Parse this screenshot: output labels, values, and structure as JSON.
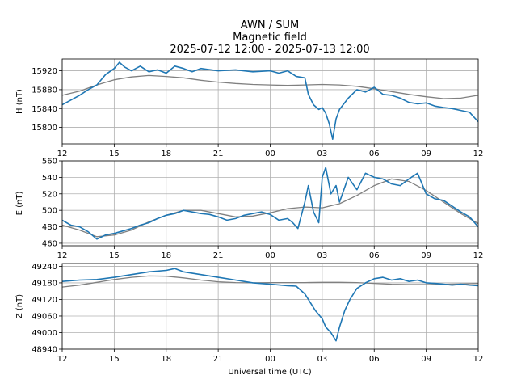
{
  "chart_data": {
    "title": [
      "AWN / SUM",
      "Magnetic field",
      "2025-07-12 12:00 - 2025-07-13 12:00"
    ],
    "xlabel": "Universal time (UTC)",
    "type": "line",
    "x_ticks": [
      "12",
      "15",
      "18",
      "21",
      "00",
      "03",
      "06",
      "09",
      "12"
    ],
    "x_range_hours": [
      12,
      36
    ],
    "grid": true,
    "colors": {
      "measured": "#1f77b4",
      "baseline": "#808080"
    },
    "panels": [
      {
        "ylabel": "H (nT)",
        "ylim": [
          15765,
          15945
        ],
        "yticks": [
          15800,
          15840,
          15880,
          15920
        ],
        "series": [
          {
            "role": "measured",
            "x": [
              12,
              12.5,
              13,
              13.5,
              14,
              14.5,
              15,
              15.3,
              15.6,
              16,
              16.5,
              17,
              17.5,
              18,
              18.5,
              19,
              19.5,
              20,
              21,
              22,
              23,
              24,
              24.5,
              25,
              25.5,
              26,
              26.2,
              26.5,
              26.8,
              27,
              27.2,
              27.4,
              27.6,
              27.8,
              28,
              28.5,
              29,
              29.5,
              30,
              30.5,
              31,
              31.5,
              32,
              32.5,
              33,
              33.5,
              34,
              34.5,
              35,
              35.5,
              36
            ],
            "y": [
              15848,
              15858,
              15868,
              15880,
              15890,
              15912,
              15925,
              15938,
              15928,
              15920,
              15930,
              15918,
              15922,
              15915,
              15930,
              15925,
              15918,
              15925,
              15920,
              15922,
              15918,
              15920,
              15915,
              15920,
              15908,
              15905,
              15870,
              15848,
              15838,
              15842,
              15830,
              15808,
              15775,
              15818,
              15838,
              15862,
              15880,
              15875,
              15885,
              15870,
              15868,
              15862,
              15853,
              15850,
              15852,
              15845,
              15842,
              15840,
              15836,
              15832,
              15812
            ]
          },
          {
            "role": "baseline",
            "x": [
              12,
              13,
              14,
              15,
              16,
              17,
              18,
              19,
              20,
              21,
              22,
              23,
              24,
              25,
              26,
              27,
              28,
              29,
              30,
              31,
              32,
              33,
              34,
              35,
              36
            ],
            "y": [
              15868,
              15877,
              15890,
              15901,
              15907,
              15910,
              15908,
              15905,
              15900,
              15896,
              15893,
              15891,
              15890,
              15889,
              15890,
              15891,
              15890,
              15887,
              15882,
              15876,
              15870,
              15865,
              15861,
              15862,
              15868
            ]
          }
        ]
      },
      {
        "ylabel": "E (nT)",
        "ylim": [
          457,
          560
        ],
        "yticks": [
          460,
          480,
          500,
          520,
          540,
          560
        ],
        "series": [
          {
            "role": "measured",
            "x": [
              12,
              12.5,
              13,
              13.5,
              14,
              14.5,
              15,
              15.5,
              16,
              16.5,
              17,
              17.5,
              18,
              18.5,
              19,
              19.5,
              20,
              20.5,
              21,
              21.5,
              22,
              22.5,
              23,
              23.5,
              24,
              24.5,
              25,
              25.3,
              25.6,
              26,
              26.2,
              26.5,
              26.8,
              27,
              27.2,
              27.5,
              27.8,
              28,
              28.5,
              29,
              29.5,
              30,
              30.5,
              31,
              31.5,
              32,
              32.5,
              33,
              33.5,
              34,
              34.5,
              35,
              35.5,
              36
            ],
            "y": [
              488,
              482,
              480,
              474,
              465,
              470,
              472,
              475,
              478,
              482,
              485,
              490,
              494,
              496,
              500,
              498,
              496,
              495,
              492,
              488,
              490,
              494,
              496,
              498,
              495,
              488,
              490,
              485,
              478,
              510,
              530,
              498,
              485,
              540,
              552,
              520,
              530,
              510,
              540,
              525,
              545,
              540,
              538,
              532,
              530,
              538,
              545,
              520,
              514,
              512,
              505,
              498,
              492,
              480
            ]
          },
          {
            "role": "baseline",
            "x": [
              12,
              13,
              14,
              15,
              16,
              17,
              18,
              19,
              20,
              21,
              22,
              23,
              24,
              25,
              26,
              27,
              28,
              29,
              30,
              31,
              32,
              33,
              34,
              35,
              36
            ],
            "y": [
              482,
              476,
              468,
              470,
              476,
              486,
              494,
              500,
              500,
              496,
              492,
              493,
              497,
              502,
              504,
              503,
              508,
              518,
              530,
              538,
              535,
              524,
              510,
              496,
              484
            ]
          }
        ]
      },
      {
        "ylabel": "Z (nT)",
        "ylim": [
          48940,
          49250
        ],
        "yticks": [
          48940,
          49000,
          49060,
          49120,
          49180,
          49240
        ],
        "series": [
          {
            "role": "measured",
            "x": [
              12,
              13,
              14,
              15,
              16,
              17,
              18,
              18.5,
              19,
              20,
              21,
              22,
              23,
              24,
              25,
              25.5,
              26,
              26.3,
              26.6,
              27,
              27.2,
              27.5,
              27.8,
              28,
              28.3,
              28.6,
              29,
              29.5,
              30,
              30.5,
              31,
              31.5,
              32,
              32.5,
              33,
              33.5,
              34,
              34.5,
              35,
              35.5,
              36
            ],
            "y": [
              49185,
              49190,
              49192,
              49200,
              49210,
              49220,
              49225,
              49232,
              49220,
              49210,
              49200,
              49190,
              49180,
              49175,
              49170,
              49168,
              49140,
              49110,
              49080,
              49050,
              49020,
              49000,
              48970,
              49020,
              49080,
              49120,
              49160,
              49180,
              49195,
              49200,
              49190,
              49195,
              49185,
              49190,
              49180,
              49178,
              49175,
              49172,
              49175,
              49172,
              49170
            ]
          },
          {
            "role": "baseline",
            "x": [
              12,
              13,
              14,
              15,
              16,
              17,
              18,
              19,
              20,
              21,
              22,
              23,
              24,
              25,
              26,
              27,
              28,
              29,
              30,
              31,
              32,
              33,
              34,
              35,
              36
            ],
            "y": [
              49165,
              49172,
              49182,
              49192,
              49200,
              49205,
              49204,
              49198,
              49190,
              49184,
              49181,
              49180,
              49181,
              49181,
              49181,
              49182,
              49182,
              49181,
              49178,
              49175,
              49174,
              49174,
              49175,
              49176,
              49178
            ]
          }
        ]
      }
    ]
  }
}
